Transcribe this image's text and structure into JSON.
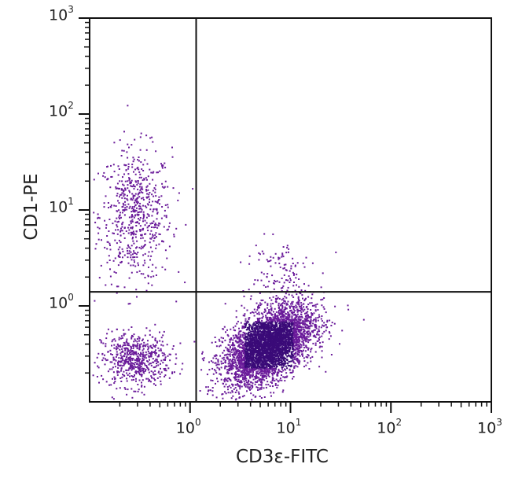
{
  "chart_data": {
    "type": "scatter",
    "title": "",
    "xlabel": "CD3ε-FITC",
    "ylabel": "CD1-PE",
    "xscale": "log",
    "yscale": "log",
    "xlim": [
      0.1,
      1000
    ],
    "ylim": [
      0.1,
      1000
    ],
    "x_ticks": [
      {
        "base": "10",
        "exp": "0",
        "value": 1
      },
      {
        "base": "10",
        "exp": "1",
        "value": 10
      },
      {
        "base": "10",
        "exp": "2",
        "value": 100
      },
      {
        "base": "10",
        "exp": "3",
        "value": 1000
      }
    ],
    "y_ticks": [
      {
        "base": "10",
        "exp": "0",
        "value": 1
      },
      {
        "base": "10",
        "exp": "1",
        "value": 10
      },
      {
        "base": "10",
        "exp": "2",
        "value": 100
      },
      {
        "base": "10",
        "exp": "3",
        "value": 1000
      }
    ],
    "gates": {
      "vertical_x": 1.15,
      "horizontal_y": 1.4
    },
    "grid": false,
    "legend": null,
    "dot_color": "#6a1b9a",
    "dense_color": "#3a0a78",
    "clusters": [
      {
        "name": "CD1+ CD3- (upper left)",
        "center_log10": [
          -0.55,
          0.95
        ],
        "sd_log10": [
          0.18,
          0.35
        ],
        "count": 650
      },
      {
        "name": "CD1- CD3- (lower left)",
        "center_log10": [
          -0.55,
          -0.55
        ],
        "sd_log10": [
          0.17,
          0.14
        ],
        "count": 600
      },
      {
        "name": "CD1- CD3+ (lower right)",
        "center_log10": [
          0.78,
          -0.4
        ],
        "sd_log10": [
          0.22,
          0.22
        ],
        "count": 4200
      },
      {
        "name": "CD1+ CD3+ tail",
        "center_log10": [
          0.85,
          0.35
        ],
        "sd_log10": [
          0.18,
          0.18
        ],
        "count": 120
      }
    ]
  }
}
